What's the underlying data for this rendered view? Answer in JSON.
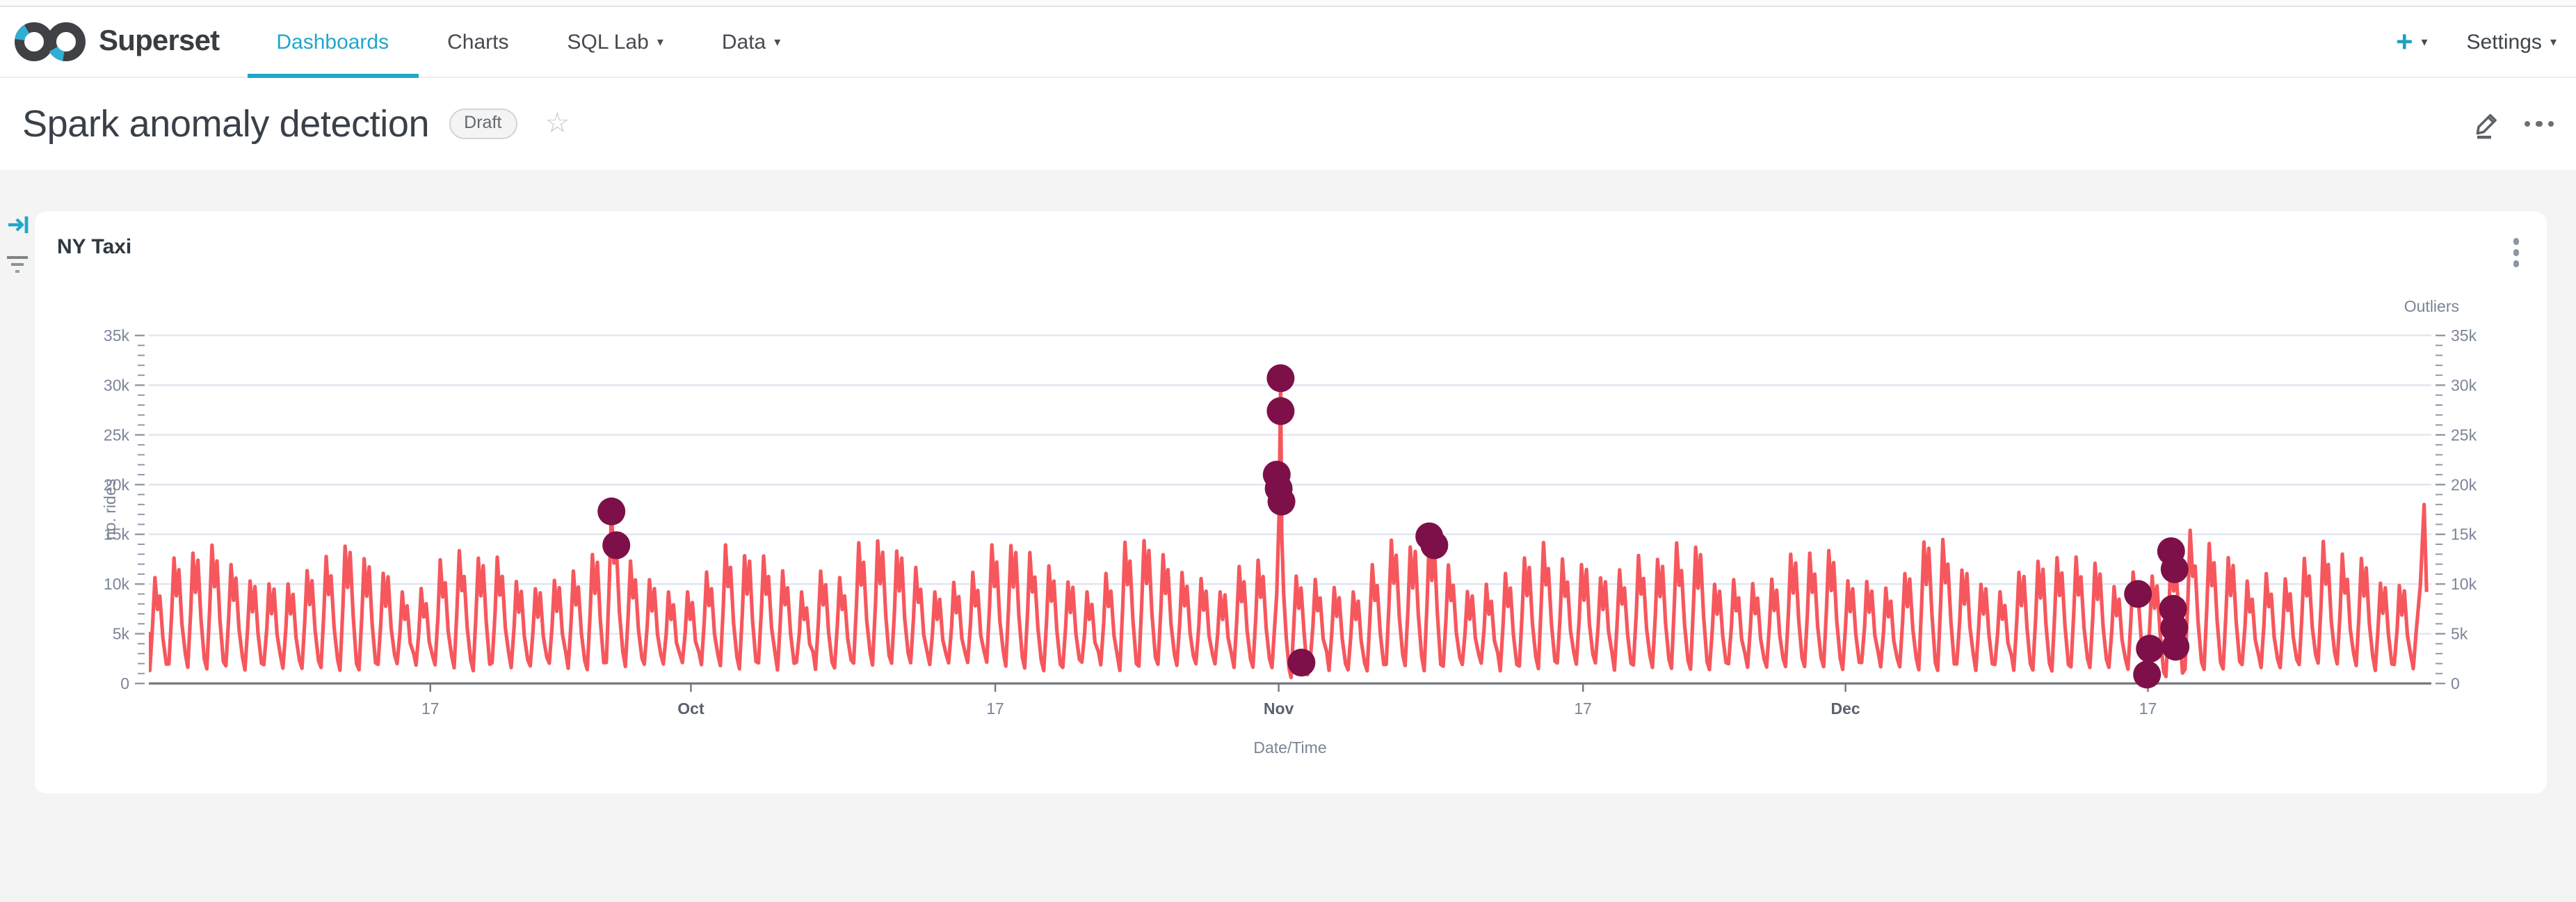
{
  "navbar": {
    "brand": "Superset",
    "items": [
      {
        "label": "Dashboards",
        "active": true,
        "has_menu": false
      },
      {
        "label": "Charts",
        "active": false,
        "has_menu": false
      },
      {
        "label": "SQL Lab",
        "active": false,
        "has_menu": true
      },
      {
        "label": "Data",
        "active": false,
        "has_menu": true
      }
    ],
    "plus_label": "+",
    "settings_label": "Settings"
  },
  "header": {
    "title": "Spark anomaly detection",
    "status_badge": "Draft"
  },
  "card": {
    "title": "NY Taxi"
  },
  "icons": {
    "caret_down": "▾",
    "star": "☆"
  },
  "colors": {
    "accent": "#20a7c9",
    "line": "#f6575d",
    "outlier": "#7d1048",
    "grid": "#e2e7f1",
    "axis_text": "#7b8496",
    "month_text": "#5b626d",
    "axis_line": "#73777e",
    "tick_mark": "#8f98a6"
  },
  "chart_data": {
    "type": "line",
    "title": "NY Taxi",
    "xlabel": "Date/Time",
    "ylabel": "no. rides",
    "right_axis_label": "Outliers",
    "grid": true,
    "legend_position": "none",
    "ylim": [
      0,
      35000
    ],
    "y_ticks": [
      {
        "v": 0,
        "label": "0"
      },
      {
        "v": 5000,
        "label": "5k"
      },
      {
        "v": 10000,
        "label": "10k"
      },
      {
        "v": 15000,
        "label": "15k"
      },
      {
        "v": 20000,
        "label": "20k"
      },
      {
        "v": 25000,
        "label": "25k"
      },
      {
        "v": 30000,
        "label": "30k"
      },
      {
        "v": 35000,
        "label": "35k"
      }
    ],
    "x_range_days": 120,
    "x_ticks": [
      {
        "day": 14.8,
        "label": "17",
        "month": false
      },
      {
        "day": 28.5,
        "label": "Oct",
        "month": true
      },
      {
        "day": 44.5,
        "label": "17",
        "month": false
      },
      {
        "day": 59.4,
        "label": "Nov",
        "month": true
      },
      {
        "day": 75.4,
        "label": "17",
        "month": false
      },
      {
        "day": 89.2,
        "label": "Dec",
        "month": true
      },
      {
        "day": 105.1,
        "label": "17",
        "month": false
      }
    ],
    "series": [
      {
        "name": "rides",
        "type": "line",
        "axis": "left",
        "daily_pattern": {
          "trough_base": 1700,
          "peak_base": 11700,
          "weekly_amp": 2000,
          "noise_amp": 1300
        },
        "events": {
          "24": {
            "peak": 17300,
            "peak2": 13900
          },
          "59": {
            "spike": true,
            "peak": 30700,
            "trough": 1600
          },
          "60": {
            "peak": 10800,
            "peak2": 9600,
            "trough": 600
          },
          "67": {
            "peak": 14800,
            "peak2": 13900
          },
          "104": {
            "peak": 11200,
            "peak2": 9000
          },
          "105": {
            "peak": 10800,
            "peak2": 9800,
            "trough": 800
          },
          "106": {
            "peak": 13300,
            "peak2": 11500,
            "trough": 700
          },
          "107": {
            "peak": 15400,
            "peak2": 11800
          },
          "119": {
            "end_spike": true,
            "peak": 18000,
            "trough": 1500
          }
        }
      },
      {
        "name": "Outliers",
        "type": "scatter",
        "axis": "right",
        "points": [
          [
            24.32,
            17300
          ],
          [
            24.58,
            13900
          ],
          [
            59.5,
            30700
          ],
          [
            59.5,
            27400
          ],
          [
            59.3,
            21000
          ],
          [
            59.4,
            19600
          ],
          [
            59.55,
            18300
          ],
          [
            60.6,
            2100
          ],
          [
            67.32,
            14800
          ],
          [
            67.58,
            13900
          ],
          [
            104.58,
            9000
          ],
          [
            105.05,
            900
          ],
          [
            105.2,
            3500
          ],
          [
            106.32,
            13300
          ],
          [
            106.5,
            11500
          ],
          [
            106.42,
            7500
          ],
          [
            106.48,
            5600
          ],
          [
            106.55,
            3700
          ]
        ]
      }
    ]
  }
}
